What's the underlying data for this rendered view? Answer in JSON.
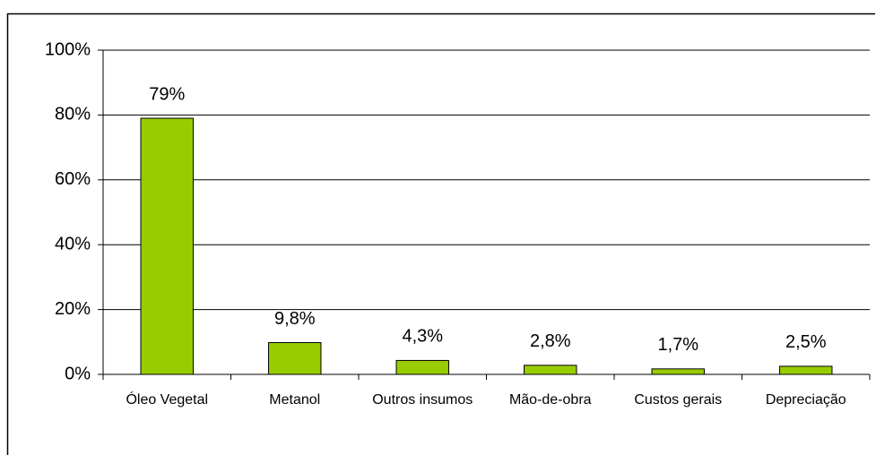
{
  "chart_data": {
    "type": "bar",
    "categories": [
      "Óleo Vegetal",
      "Metanol",
      "Outros insumos",
      "Mão-de-obra",
      "Custos gerais",
      "Depreciação"
    ],
    "values": [
      79,
      9.8,
      4.3,
      2.8,
      1.7,
      2.5
    ],
    "value_labels": [
      "79%",
      "9,8%",
      "4,3%",
      "2,8%",
      "1,7%",
      "2,5%"
    ],
    "color": "#99cc00",
    "ylim": [
      0,
      100
    ],
    "yticks": [
      {
        "value": 0,
        "label": "0%"
      },
      {
        "value": 20,
        "label": "20%"
      },
      {
        "value": 40,
        "label": "40%"
      },
      {
        "value": 60,
        "label": "60%"
      },
      {
        "value": 80,
        "label": "80%"
      },
      {
        "value": 100,
        "label": "100%"
      }
    ],
    "grid": true
  }
}
